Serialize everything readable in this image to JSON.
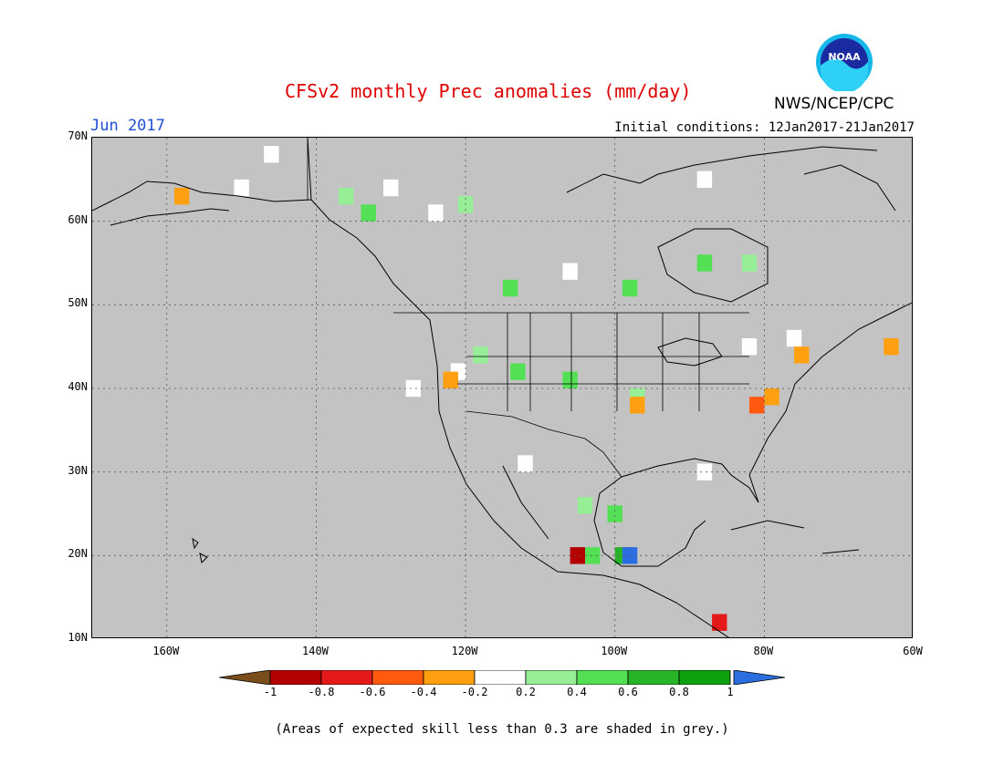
{
  "title": "CFSv2 monthly Prec anomalies (mm/day)",
  "month": "Jun 2017",
  "initial_conditions": "Initial conditions: 12Jan2017-21Jan2017",
  "agency": "NWS/NCEP/CPC",
  "logo_text": "NOAA",
  "footnote": "(Areas of expected skill less than 0.3 are shaded in grey.)",
  "map": {
    "lon_range": [
      -170,
      -60
    ],
    "lat_range": [
      10,
      70
    ],
    "lat_labels": [
      "70N",
      "60N",
      "50N",
      "40N",
      "30N",
      "20N",
      "10N"
    ],
    "lon_labels": [
      "160W",
      "140W",
      "120W",
      "100W",
      "80W",
      "60W"
    ],
    "background_color": "#c3c3c3"
  },
  "colorbar": {
    "labels": [
      "-1",
      "-0.8",
      "-0.6",
      "-0.4",
      "-0.2",
      "0.2",
      "0.4",
      "0.6",
      "0.8",
      "1"
    ],
    "colors": [
      "#7a4d1c",
      "#b40000",
      "#e41a1a",
      "#ff5a10",
      "#ffa010",
      "#ffffff",
      "#96ee96",
      "#54e054",
      "#28b428",
      "#0fa00f",
      "#2a6ee0"
    ]
  },
  "anomaly_cells": [
    {
      "lon": -158,
      "lat": 63,
      "value": -0.3
    },
    {
      "lon": -150,
      "lat": 64,
      "value": 0.0
    },
    {
      "lon": -146,
      "lat": 68,
      "value": 0.0
    },
    {
      "lon": -136,
      "lat": 63,
      "value": 0.3
    },
    {
      "lon": -133,
      "lat": 61,
      "value": 0.5
    },
    {
      "lon": -130,
      "lat": 64,
      "value": 0.0
    },
    {
      "lon": -120,
      "lat": 62,
      "value": 0.3
    },
    {
      "lon": -124,
      "lat": 61,
      "value": 0.0
    },
    {
      "lon": -114,
      "lat": 52,
      "value": 0.6
    },
    {
      "lon": -106,
      "lat": 54,
      "value": 0.0
    },
    {
      "lon": -98,
      "lat": 52,
      "value": 0.5
    },
    {
      "lon": -88,
      "lat": 55,
      "value": 0.5
    },
    {
      "lon": -82,
      "lat": 55,
      "value": 0.3
    },
    {
      "lon": -88,
      "lat": 65,
      "value": 0.0
    },
    {
      "lon": -82,
      "lat": 45,
      "value": 0.0
    },
    {
      "lon": -118,
      "lat": 44,
      "value": 0.4
    },
    {
      "lon": -121,
      "lat": 42,
      "value": 0.0
    },
    {
      "lon": -127,
      "lat": 40,
      "value": 0.0
    },
    {
      "lon": -122,
      "lat": 41,
      "value": -0.3
    },
    {
      "lon": -113,
      "lat": 42,
      "value": 0.5
    },
    {
      "lon": -106,
      "lat": 41,
      "value": 0.6
    },
    {
      "lon": -97,
      "lat": 39,
      "value": 0.3
    },
    {
      "lon": -97,
      "lat": 38,
      "value": -0.3
    },
    {
      "lon": -79,
      "lat": 39,
      "value": -0.3
    },
    {
      "lon": -81,
      "lat": 38,
      "value": -0.5
    },
    {
      "lon": -76,
      "lat": 46,
      "value": 0.0
    },
    {
      "lon": -75,
      "lat": 44,
      "value": -0.3
    },
    {
      "lon": -63,
      "lat": 45,
      "value": -0.3
    },
    {
      "lon": -112,
      "lat": 31,
      "value": 0.0
    },
    {
      "lon": -104,
      "lat": 26,
      "value": 0.3
    },
    {
      "lon": -100,
      "lat": 25,
      "value": 0.5
    },
    {
      "lon": -103,
      "lat": 20,
      "value": 0.6
    },
    {
      "lon": -99,
      "lat": 20,
      "value": 0.8
    },
    {
      "lon": -98,
      "lat": 20,
      "value": 1.1
    },
    {
      "lon": -105,
      "lat": 20,
      "value": -0.8
    },
    {
      "lon": -88,
      "lat": 30,
      "value": 0.0
    },
    {
      "lon": -86,
      "lat": 12,
      "value": -0.6
    }
  ]
}
